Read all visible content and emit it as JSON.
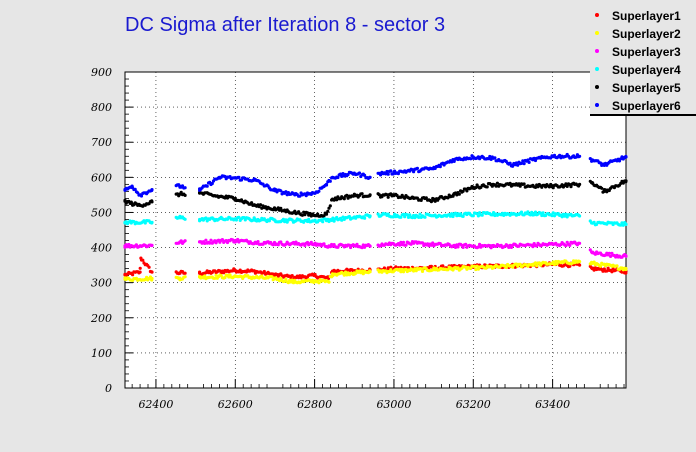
{
  "chart_data": {
    "type": "scatter",
    "title": "DC Sigma after Iteration 8 - sector 3",
    "xlabel": "",
    "ylabel": "",
    "xlim": [
      62322,
      63585
    ],
    "ylim": [
      0,
      900
    ],
    "xticks": [
      62400,
      62600,
      62800,
      63000,
      63200,
      63400
    ],
    "yticks": [
      0,
      100,
      200,
      300,
      400,
      500,
      600,
      700,
      800,
      900
    ],
    "grid": true,
    "legend_position": "top-right",
    "run_segments": [
      [
        62322,
        62390
      ],
      [
        62451,
        62475
      ],
      [
        62510,
        62940
      ],
      [
        62960,
        63468
      ],
      [
        63495,
        63585
      ]
    ],
    "series": [
      {
        "name": "Superlayer1",
        "color": "#ff0000",
        "points": [
          [
            62322,
            322
          ],
          [
            62360,
            330
          ],
          [
            62362,
            370
          ],
          [
            62390,
            330
          ],
          [
            62460,
            328
          ],
          [
            62510,
            327
          ],
          [
            62600,
            335
          ],
          [
            62650,
            332
          ],
          [
            62700,
            322
          ],
          [
            62750,
            315
          ],
          [
            62800,
            320
          ],
          [
            62835,
            312
          ],
          [
            62845,
            333
          ],
          [
            62900,
            334
          ],
          [
            62940,
            336
          ],
          [
            62970,
            337
          ],
          [
            63000,
            340
          ],
          [
            63050,
            341
          ],
          [
            63100,
            342
          ],
          [
            63150,
            344
          ],
          [
            63200,
            346
          ],
          [
            63260,
            347
          ],
          [
            63300,
            348
          ],
          [
            63350,
            350
          ],
          [
            63400,
            352
          ],
          [
            63468,
            350
          ],
          [
            63500,
            340
          ],
          [
            63585,
            332
          ]
        ]
      },
      {
        "name": "Superlayer2",
        "color": "#ffff00",
        "points": [
          [
            62322,
            310
          ],
          [
            62390,
            312
          ],
          [
            62460,
            313
          ],
          [
            62510,
            316
          ],
          [
            62600,
            318
          ],
          [
            62700,
            312
          ],
          [
            62750,
            302
          ],
          [
            62800,
            305
          ],
          [
            62835,
            303
          ],
          [
            62845,
            325
          ],
          [
            62900,
            328
          ],
          [
            62940,
            331
          ],
          [
            62970,
            333
          ],
          [
            63050,
            336
          ],
          [
            63150,
            340
          ],
          [
            63250,
            344
          ],
          [
            63350,
            352
          ],
          [
            63468,
            360
          ],
          [
            63500,
            355
          ],
          [
            63585,
            340
          ]
        ]
      },
      {
        "name": "Superlayer3",
        "color": "#ff00ff",
        "points": [
          [
            62322,
            405
          ],
          [
            62390,
            406
          ],
          [
            62460,
            415
          ],
          [
            62510,
            416
          ],
          [
            62600,
            420
          ],
          [
            62650,
            415
          ],
          [
            62700,
            412
          ],
          [
            62800,
            410
          ],
          [
            62845,
            404
          ],
          [
            62900,
            405
          ],
          [
            62940,
            404
          ],
          [
            62970,
            410
          ],
          [
            63050,
            412
          ],
          [
            63150,
            405
          ],
          [
            63250,
            404
          ],
          [
            63350,
            407
          ],
          [
            63468,
            412
          ],
          [
            63500,
            385
          ],
          [
            63585,
            375
          ]
        ]
      },
      {
        "name": "Superlayer4",
        "color": "#00ffff",
        "points": [
          [
            62322,
            472
          ],
          [
            62390,
            472
          ],
          [
            62460,
            485
          ],
          [
            62510,
            480
          ],
          [
            62600,
            482
          ],
          [
            62650,
            480
          ],
          [
            62700,
            478
          ],
          [
            62800,
            476
          ],
          [
            62845,
            480
          ],
          [
            62900,
            485
          ],
          [
            62940,
            490
          ],
          [
            62970,
            493
          ],
          [
            63050,
            490
          ],
          [
            63150,
            493
          ],
          [
            63250,
            495
          ],
          [
            63350,
            497
          ],
          [
            63468,
            490
          ],
          [
            63500,
            470
          ],
          [
            63585,
            466
          ]
        ]
      },
      {
        "name": "Superlayer5",
        "color": "#000000",
        "points": [
          [
            62322,
            532
          ],
          [
            62340,
            525
          ],
          [
            62360,
            520
          ],
          [
            62390,
            530
          ],
          [
            62460,
            552
          ],
          [
            62510,
            555
          ],
          [
            62560,
            545
          ],
          [
            62600,
            540
          ],
          [
            62650,
            520
          ],
          [
            62700,
            510
          ],
          [
            62750,
            500
          ],
          [
            62800,
            492
          ],
          [
            62830,
            495
          ],
          [
            62845,
            538
          ],
          [
            62900,
            548
          ],
          [
            62940,
            550
          ],
          [
            62970,
            548
          ],
          [
            63000,
            548
          ],
          [
            63050,
            540
          ],
          [
            63100,
            535
          ],
          [
            63150,
            550
          ],
          [
            63200,
            572
          ],
          [
            63250,
            580
          ],
          [
            63300,
            578
          ],
          [
            63350,
            575
          ],
          [
            63400,
            575
          ],
          [
            63468,
            580
          ],
          [
            63500,
            585
          ],
          [
            63530,
            560
          ],
          [
            63585,
            590
          ]
        ]
      },
      {
        "name": "Superlayer6",
        "color": "#0000ff",
        "points": [
          [
            62322,
            563
          ],
          [
            62340,
            575
          ],
          [
            62360,
            550
          ],
          [
            62390,
            565
          ],
          [
            62460,
            575
          ],
          [
            62510,
            563
          ],
          [
            62560,
            600
          ],
          [
            62600,
            598
          ],
          [
            62650,
            592
          ],
          [
            62700,
            562
          ],
          [
            62750,
            550
          ],
          [
            62800,
            555
          ],
          [
            62830,
            580
          ],
          [
            62845,
            600
          ],
          [
            62900,
            612
          ],
          [
            62940,
            600
          ],
          [
            62970,
            612
          ],
          [
            63000,
            614
          ],
          [
            63050,
            620
          ],
          [
            63100,
            625
          ],
          [
            63150,
            650
          ],
          [
            63200,
            658
          ],
          [
            63250,
            655
          ],
          [
            63300,
            635
          ],
          [
            63350,
            650
          ],
          [
            63400,
            660
          ],
          [
            63468,
            660
          ],
          [
            63500,
            650
          ],
          [
            63530,
            635
          ],
          [
            63585,
            658
          ]
        ]
      }
    ]
  }
}
